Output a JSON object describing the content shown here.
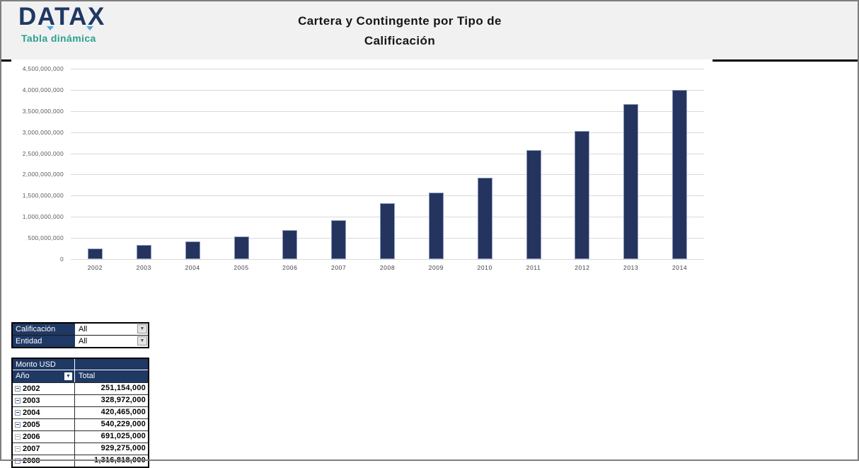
{
  "header": {
    "logo_text": "DATAX",
    "logo_subtitle": "Tabla dinámica",
    "title_line1": "Cartera y Contingente por Tipo de",
    "title_line2": "Calificación"
  },
  "colors": {
    "navy": "#1f3864",
    "bar_fill": "#24345f",
    "teal_accent": "#2ba18e",
    "logo_accent_blue": "#4fa7dc",
    "header_band_bg": "#f1f1f1",
    "gridline": "#d9d9d9"
  },
  "chart_data": {
    "type": "bar",
    "title": "Cartera y Contingente por Tipo de Calificación",
    "categories": [
      "2002",
      "2003",
      "2004",
      "2005",
      "2006",
      "2007",
      "2008",
      "2009",
      "2010",
      "2011",
      "2012",
      "2013",
      "2014"
    ],
    "values": [
      251154000,
      328972000,
      420465000,
      540229000,
      691025000,
      929275000,
      1316818000,
      1570000000,
      1930000000,
      2580000000,
      3030000000,
      3660000000,
      4000000000
    ],
    "xlabel": "",
    "ylabel": "",
    "ylim": [
      0,
      4500000000
    ],
    "ytick_step": 500000000,
    "grid": true,
    "legend": "none"
  },
  "filters": [
    {
      "label": "Calificación",
      "value": "All"
    },
    {
      "label": "Entidad",
      "value": "All"
    }
  ],
  "pivot": {
    "title": "Monto USD",
    "row_header": "Año",
    "value_header": "Total",
    "rows": [
      {
        "year": "2002",
        "total": "251,154,000",
        "expand": "blue"
      },
      {
        "year": "2003",
        "total": "328,972,000",
        "expand": "blue"
      },
      {
        "year": "2004",
        "total": "420,465,000",
        "expand": "blue"
      },
      {
        "year": "2005",
        "total": "540,229,000",
        "expand": "blue"
      },
      {
        "year": "2006",
        "total": "691,025,000",
        "expand": "gray"
      },
      {
        "year": "2007",
        "total": "929,275,000",
        "expand": "gray"
      },
      {
        "year": "2008",
        "total": "1,316,818,000",
        "expand": "blue"
      }
    ]
  },
  "icons": {
    "dropdown_arrow": "▼",
    "collapse_box": "minus-box"
  }
}
